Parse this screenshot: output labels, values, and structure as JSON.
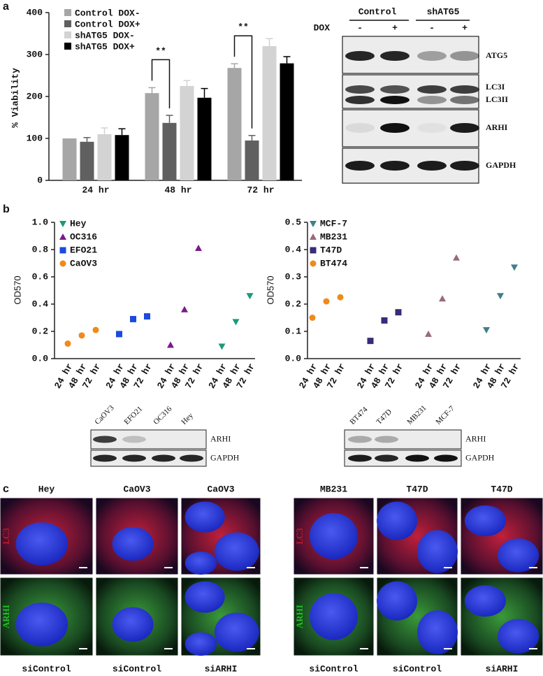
{
  "panel_labels": [
    "a",
    "b",
    "c"
  ],
  "chart_data": [
    {
      "type": "bar",
      "ylabel": "% Viability",
      "categories": [
        "24 hr",
        "48 hr",
        "72 hr"
      ],
      "series": [
        {
          "name": "Control DOX-",
          "color": "#a6a6a6",
          "values": [
            100,
            208,
            268
          ],
          "errors": [
            0,
            13,
            10
          ]
        },
        {
          "name": "Control DOX+",
          "color": "#606060",
          "values": [
            92,
            137,
            95
          ],
          "errors": [
            10,
            18,
            12
          ]
        },
        {
          "name": "shATG5 DOX-",
          "color": "#d3d3d3",
          "values": [
            110,
            225,
            320
          ],
          "errors": [
            15,
            13,
            18
          ]
        },
        {
          "name": "shATG5 DOX+",
          "color": "#000000",
          "values": [
            108,
            197,
            279
          ],
          "errors": [
            15,
            22,
            16
          ]
        }
      ],
      "ylim": [
        0,
        400
      ],
      "yticks": [
        0,
        100,
        200,
        300,
        400
      ],
      "annotations": [
        {
          "text": "**",
          "category": "48 hr"
        },
        {
          "text": "**",
          "category": "72 hr"
        }
      ]
    },
    {
      "type": "scatter",
      "ylabel": "OD570",
      "categories": [
        "24 hr",
        "48 hr",
        "72 hr",
        "24 hr",
        "48 hr",
        "72 hr",
        "24 hr",
        "48 hr",
        "72 hr",
        "24 hr",
        "48 hr",
        "72 hr"
      ],
      "series": [
        {
          "name": "Hey",
          "color": "#1a9a7a",
          "marker": "triangle-down",
          "values": [
            null,
            null,
            null,
            null,
            null,
            null,
            null,
            null,
            null,
            0.09,
            0.27,
            0.46
          ]
        },
        {
          "name": "OC316",
          "color": "#7a1a8a",
          "marker": "triangle-up",
          "values": [
            null,
            null,
            null,
            null,
            null,
            null,
            0.1,
            0.36,
            0.81,
            null,
            null,
            null
          ]
        },
        {
          "name": "EFO21",
          "color": "#1a4ae0",
          "marker": "square",
          "values": [
            null,
            null,
            null,
            0.18,
            0.29,
            0.31,
            null,
            null,
            null,
            null,
            null,
            null
          ]
        },
        {
          "name": "CaOV3",
          "color": "#f08a1a",
          "marker": "circle",
          "values": [
            0.11,
            0.17,
            0.21,
            null,
            null,
            null,
            null,
            null,
            null,
            null,
            null,
            null
          ]
        }
      ],
      "ylim": [
        0,
        1
      ],
      "yticks": [
        {
          "value": 0,
          "label": "0.0"
        },
        0.2,
        0.4,
        0.6,
        0.8,
        {
          "value": 1,
          "label": "1.0"
        }
      ]
    },
    {
      "type": "scatter",
      "ylabel": "OD570",
      "categories": [
        "24 hr",
        "48 hr",
        "72 hr",
        "24 hr",
        "48 hr",
        "72 hr",
        "24 hr",
        "48 hr",
        "72 hr",
        "24 hr",
        "48 hr",
        "72 hr"
      ],
      "series": [
        {
          "name": "MCF-7",
          "color": "#3f7f8a",
          "marker": "triangle-down",
          "values": [
            null,
            null,
            null,
            null,
            null,
            null,
            null,
            null,
            null,
            0.105,
            0.23,
            0.335
          ]
        },
        {
          "name": "MB231",
          "color": "#9a6a7a",
          "marker": "triangle-up",
          "values": [
            null,
            null,
            null,
            null,
            null,
            null,
            0.09,
            0.22,
            0.37,
            null,
            null,
            null
          ]
        },
        {
          "name": "T47D",
          "color": "#3a2a7a",
          "marker": "square",
          "values": [
            null,
            null,
            null,
            0.065,
            0.14,
            0.17,
            null,
            null,
            null,
            null,
            null,
            null
          ]
        },
        {
          "name": "BT474",
          "color": "#f08a1a",
          "marker": "circle",
          "values": [
            0.15,
            0.21,
            0.225,
            null,
            null,
            null,
            null,
            null,
            null,
            null,
            null,
            null
          ]
        }
      ],
      "ylim": [
        0,
        0.5
      ],
      "yticks": [
        {
          "value": 0,
          "label": "0.0"
        },
        0.1,
        0.2,
        0.3,
        0.4,
        0.5
      ]
    }
  ],
  "blot_a": {
    "groups": [
      "Control",
      "shATG5"
    ],
    "treatment_label": "DOX",
    "lane_labels": [
      "-",
      "+",
      "-",
      "+"
    ],
    "rows": [
      "ATG5",
      "LC3I",
      "LC3II",
      "ARHI",
      "GAPDH"
    ]
  },
  "blots_b": [
    {
      "lanes": [
        "CaOV3",
        "EFO21",
        "OC316",
        "Hey"
      ],
      "rows": [
        "ARHI",
        "GAPDH"
      ]
    },
    {
      "lanes": [
        "BT474",
        "T47D",
        "MB231",
        "MCF-7"
      ],
      "rows": [
        "ARHI",
        "GAPDH"
      ]
    }
  ],
  "microscopy": [
    {
      "columns": [
        "Hey",
        "CaOV3",
        "CaOV3"
      ],
      "rows": [
        "LC3",
        "ARHI"
      ],
      "conditions": [
        "siControl",
        "siControl",
        "siARHI"
      ]
    },
    {
      "columns": [
        "MB231",
        "T47D",
        "T47D"
      ],
      "rows": [
        "LC3",
        "ARHI"
      ],
      "conditions": [
        "siControl",
        "siControl",
        "siARHI"
      ]
    }
  ]
}
